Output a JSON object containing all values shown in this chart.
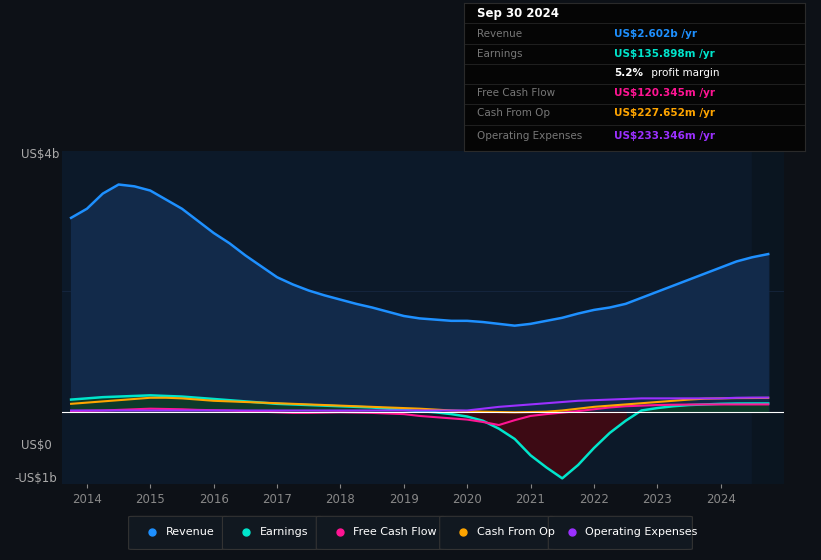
{
  "bg_color": "#0d1117",
  "plot_bg_color": "#0c1929",
  "grid_color": "#1e3050",
  "years": [
    2013.75,
    2014.0,
    2014.25,
    2014.5,
    2014.75,
    2015.0,
    2015.25,
    2015.5,
    2015.75,
    2016.0,
    2016.25,
    2016.5,
    2016.75,
    2017.0,
    2017.25,
    2017.5,
    2017.75,
    2018.0,
    2018.25,
    2018.5,
    2018.75,
    2019.0,
    2019.25,
    2019.5,
    2019.75,
    2020.0,
    2020.25,
    2020.5,
    2020.75,
    2021.0,
    2021.25,
    2021.5,
    2021.75,
    2022.0,
    2022.25,
    2022.5,
    2022.75,
    2023.0,
    2023.25,
    2023.5,
    2023.75,
    2024.0,
    2024.25,
    2024.5,
    2024.75
  ],
  "revenue": [
    3.2,
    3.35,
    3.6,
    3.75,
    3.72,
    3.65,
    3.5,
    3.35,
    3.15,
    2.95,
    2.78,
    2.58,
    2.4,
    2.22,
    2.1,
    2.0,
    1.92,
    1.85,
    1.78,
    1.72,
    1.65,
    1.58,
    1.54,
    1.52,
    1.5,
    1.5,
    1.48,
    1.45,
    1.42,
    1.45,
    1.5,
    1.55,
    1.62,
    1.68,
    1.72,
    1.78,
    1.88,
    1.98,
    2.08,
    2.18,
    2.28,
    2.38,
    2.48,
    2.55,
    2.602
  ],
  "earnings": [
    0.2,
    0.22,
    0.24,
    0.25,
    0.26,
    0.27,
    0.26,
    0.25,
    0.23,
    0.21,
    0.19,
    0.17,
    0.15,
    0.13,
    0.12,
    0.11,
    0.1,
    0.09,
    0.08,
    0.07,
    0.05,
    0.03,
    0.01,
    -0.01,
    -0.04,
    -0.08,
    -0.15,
    -0.28,
    -0.45,
    -0.72,
    -0.92,
    -1.1,
    -0.88,
    -0.6,
    -0.35,
    -0.15,
    0.02,
    0.06,
    0.09,
    0.11,
    0.12,
    0.13,
    0.135,
    0.136,
    0.1359
  ],
  "free_cash_flow": [
    0.01,
    0.015,
    0.02,
    0.03,
    0.04,
    0.05,
    0.045,
    0.04,
    0.03,
    0.025,
    0.02,
    0.01,
    0.0,
    -0.01,
    -0.02,
    -0.02,
    -0.015,
    -0.01,
    -0.015,
    -0.02,
    -0.03,
    -0.04,
    -0.07,
    -0.09,
    -0.11,
    -0.13,
    -0.17,
    -0.22,
    -0.14,
    -0.07,
    -0.04,
    -0.015,
    0.01,
    0.04,
    0.07,
    0.09,
    0.1,
    0.11,
    0.115,
    0.118,
    0.12,
    0.12,
    0.12,
    0.12,
    0.1203
  ],
  "cash_from_op": [
    0.13,
    0.15,
    0.17,
    0.19,
    0.21,
    0.23,
    0.23,
    0.22,
    0.2,
    0.18,
    0.17,
    0.16,
    0.15,
    0.14,
    0.13,
    0.12,
    0.11,
    0.1,
    0.09,
    0.08,
    0.07,
    0.06,
    0.05,
    0.035,
    0.02,
    0.01,
    0.0,
    -0.005,
    -0.01,
    -0.005,
    0.0,
    0.02,
    0.05,
    0.08,
    0.1,
    0.12,
    0.14,
    0.16,
    0.18,
    0.2,
    0.215,
    0.22,
    0.225,
    0.226,
    0.2277
  ],
  "operating_expenses": [
    0.02,
    0.02,
    0.02,
    0.02,
    0.02,
    0.02,
    0.02,
    0.02,
    0.02,
    0.02,
    0.02,
    0.02,
    0.02,
    0.02,
    0.02,
    0.02,
    0.02,
    0.02,
    0.02,
    0.02,
    0.02,
    0.02,
    0.02,
    0.02,
    0.02,
    0.02,
    0.05,
    0.08,
    0.1,
    0.12,
    0.14,
    0.16,
    0.18,
    0.19,
    0.2,
    0.21,
    0.22,
    0.22,
    0.22,
    0.22,
    0.22,
    0.22,
    0.23,
    0.233,
    0.2333
  ],
  "revenue_color": "#1e90ff",
  "revenue_fill": "#122a4a",
  "earnings_color": "#00e5cc",
  "earnings_fill_pos": "#0d3a2a",
  "earnings_fill_neg": "#3d0a14",
  "fcf_color": "#ff1493",
  "cop_color": "#ffa500",
  "opex_color": "#9b30ff",
  "ylim": [
    -1.2,
    4.3
  ],
  "xlim": [
    2013.6,
    2025.0
  ],
  "xticks": [
    2014,
    2015,
    2016,
    2017,
    2018,
    2019,
    2020,
    2021,
    2022,
    2023,
    2024
  ],
  "shade_right_x": 2024.5
}
